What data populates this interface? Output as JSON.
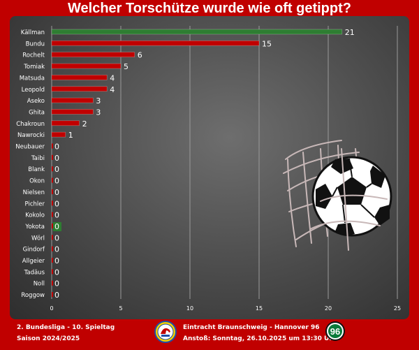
{
  "title": "Welcher Torschütze wurde wie oft getippt?",
  "footer": {
    "league_line": "2. Bundesliga - 10. Spieltag",
    "season_line": "Saison 2024/2025",
    "match_line": "Eintracht Braunschweig - Hannover 96",
    "kickoff_line": "Anstoß: Sonntag, 26.10.2025 um 13:30 Uhr",
    "away_logo_text": "96"
  },
  "colors": {
    "background": "#c00000",
    "bar_default": "#c00000",
    "bar_highlight": "#2e7d32",
    "text": "#ffffff"
  },
  "chart_data": {
    "type": "bar",
    "orientation": "horizontal",
    "categories": [
      "Källman",
      "Bundu",
      "Rochelt",
      "Tomiak",
      "Matsuda",
      "Leopold",
      "Aseko",
      "Ghita",
      "Chakroun",
      "Nawrocki",
      "Neubauer",
      "Taibi",
      "Blank",
      "Okon",
      "Nielsen",
      "Pichler",
      "Kokolo",
      "Yokota",
      "Wörl",
      "Gindorf",
      "Allgeier",
      "Tadäus",
      "Noll",
      "Roggow"
    ],
    "values": [
      21,
      15,
      6,
      5,
      4,
      4,
      3,
      3,
      2,
      1,
      0,
      0,
      0,
      0,
      0,
      0,
      0,
      0,
      0,
      0,
      0,
      0,
      0,
      0
    ],
    "highlighted": [
      "Källman",
      "Yokota"
    ],
    "xlim": [
      0,
      25
    ],
    "xticks": [
      0,
      5,
      10,
      15,
      20,
      25
    ],
    "grid": true,
    "title": "Welcher Torschütze wurde wie oft getippt?"
  }
}
